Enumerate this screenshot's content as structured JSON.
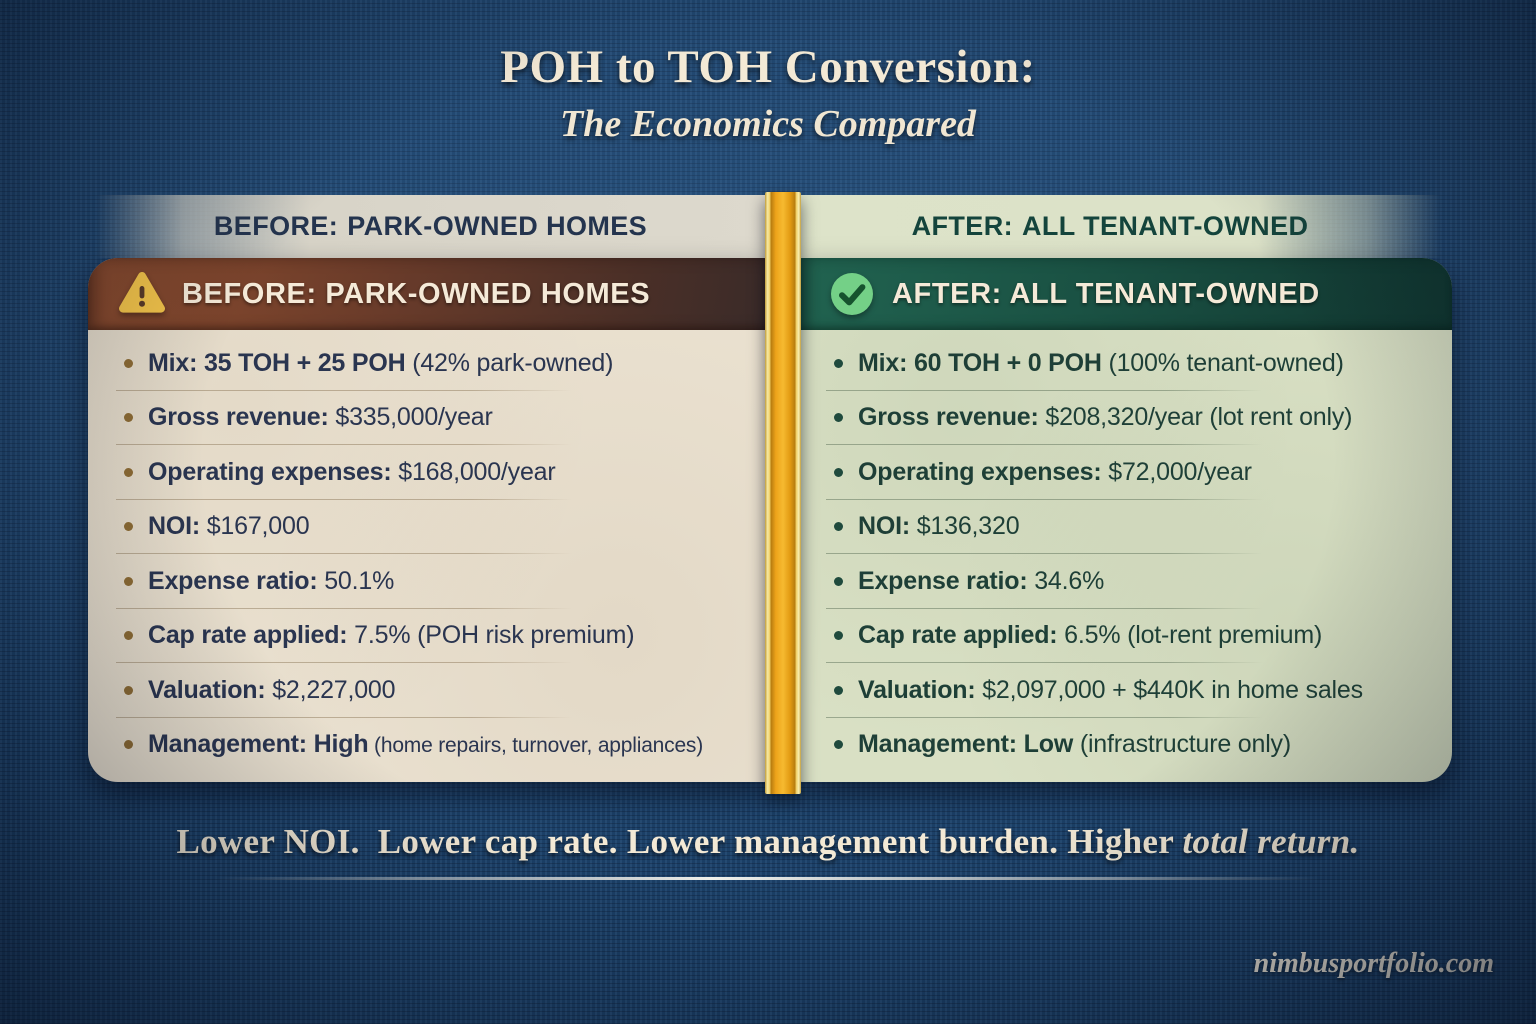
{
  "title": {
    "main": "POH to TOH Conversion:",
    "sub": "The Economics Compared"
  },
  "before": {
    "strip_prefix": "BEFORE:",
    "strip_rest": "PARK-OWNED HOMES",
    "header": "BEFORE: PARK-OWNED HOMES",
    "header_icon": "warning-triangle-icon",
    "rows": [
      {
        "bold": "Mix: 35 TOH + 25 POH",
        "rest": " (42% park-owned)"
      },
      {
        "bold": "Gross revenue:",
        "rest": " $335,000/year"
      },
      {
        "bold": "Operating expenses:",
        "rest": " $168,000/year"
      },
      {
        "bold": "NOI:",
        "rest": " $167,000"
      },
      {
        "bold": "Expense ratio:",
        "rest": " 50.1%"
      },
      {
        "bold": "Cap rate applied:",
        "rest": " 7.5% (POH risk premium)"
      },
      {
        "bold": "Valuation:",
        "rest": " $2,227,000"
      },
      {
        "bold": "Management: High",
        "rest": " (home repairs, turnover, appliances)",
        "rest_small": true
      }
    ]
  },
  "after": {
    "strip_prefix": "AFTER:",
    "strip_rest": "ALL TENANT-OWNED",
    "header": "AFTER: ALL TENANT-OWNED",
    "header_icon": "check-circle-icon",
    "rows": [
      {
        "bold": "Mix: 60 TOH + 0 POH",
        "rest": " (100% tenant-owned)"
      },
      {
        "bold": "Gross revenue:",
        "rest": " $208,320/year (lot rent only)"
      },
      {
        "bold": "Operating expenses:",
        "rest": " $72,000/year"
      },
      {
        "bold": "NOI:",
        "rest": " $136,320"
      },
      {
        "bold": "Expense ratio:",
        "rest": " 34.6%"
      },
      {
        "bold": "Cap rate applied:",
        "rest": " 6.5% (lot-rent premium)"
      },
      {
        "bold": "Valuation:",
        "rest": " $2,097,000 + $440K in home sales"
      },
      {
        "bold": "Management: Low",
        "rest": " (infrastructure only)"
      }
    ]
  },
  "tagline": {
    "part1": "Lower NOI.  Lower cap rate. Lower management burden. Higher ",
    "part2": "total return."
  },
  "footer": {
    "watermark": "nimbusportfolio.com"
  },
  "colors": {
    "background_navy": "#1b3f66",
    "gold_ribbon": "#eda31a",
    "before_header_brown": "#6b3c2a",
    "after_header_green": "#1a5143",
    "before_panel_parchment": "#eae1d0",
    "after_panel_sage": "#d9e0c4",
    "warning_yellow": "#f5c54a",
    "check_green": "#74d087",
    "cream_text": "#f3e9d5"
  }
}
